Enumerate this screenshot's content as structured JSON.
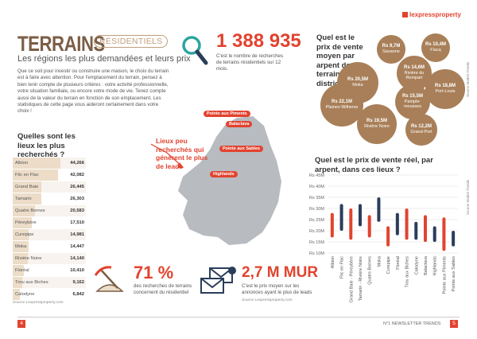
{
  "header": {
    "logo": "lexpressproperty",
    "title": "TERRAINS",
    "tag": "RÉSIDENTIELS",
    "subtitle": "Les régions les plus demandées et leurs prix"
  },
  "intro": "Que ce soit pour investir ou construire une maison, le choix du terrain est à faire avec attention. Pour l'emplacement du terrain, pensez à bien tenir compte de plusieurs critères : votre activité professionnelle, votre situation familiale, ou encore votre mode de vie. Tenez compte aussi de la valeur du terrain en fonction de son emplacement. Les statistiques de cette page vous aideront certainement dans votre choix !",
  "stat_searches": {
    "value": "1 388 935",
    "caption": "C'est le nombre de recherches de terrains résidentiels sur 12 mois."
  },
  "district_prices": {
    "title": "Quel est le prix de vente moyen par arpent de terrains par district ?",
    "source": "Source Market Trends",
    "color": "#a87f58",
    "bubbles": [
      {
        "value": 9.7,
        "label": "Rs 9,7M",
        "district": "Savanne"
      },
      {
        "value": 10.4,
        "label": "Rs 10,4M",
        "district": "Flacq"
      },
      {
        "value": 14.6,
        "label": "Rs 14,6M",
        "district": "Rivière du Rempart"
      },
      {
        "value": 20.5,
        "label": "Rs 20,5M",
        "district": "Moka"
      },
      {
        "value": 22.1,
        "label": "Rs 22,1M",
        "district": "Plaines Wilhems"
      },
      {
        "value": 15.5,
        "label": "Rs 15,5M",
        "district": "Pample-mousses"
      },
      {
        "value": 18.8,
        "label": "Rs 18,8M",
        "district": "Port-Louis"
      },
      {
        "value": 19.5,
        "label": "Rs 19,5M",
        "district": "Rivière Noire"
      },
      {
        "value": 12.2,
        "label": "Rs 12,2M",
        "district": "Grand-Port"
      }
    ]
  },
  "searched_places": {
    "title": "Quelles sont les lieux les plus recherchés ?",
    "source": "Source Lexpressproperty.com",
    "rows": [
      {
        "name": "Albion",
        "value": 44266,
        "label": "44,266"
      },
      {
        "name": "Flic en Flac",
        "value": 42082,
        "label": "42,082"
      },
      {
        "name": "Grand Baie",
        "value": 26445,
        "label": "26,445"
      },
      {
        "name": "Tamarin",
        "value": 26303,
        "label": "26,303"
      },
      {
        "name": "Quatre Bornes",
        "value": 20583,
        "label": "20,583"
      },
      {
        "name": "Péreybère",
        "value": 17510,
        "label": "17,510"
      },
      {
        "name": "Curepipe",
        "value": 14981,
        "label": "14,981"
      },
      {
        "name": "Moka",
        "value": 14447,
        "label": "14,447"
      },
      {
        "name": "Rivière Noire",
        "value": 14140,
        "label": "14,140"
      },
      {
        "name": "Floréal",
        "value": 10410,
        "label": "10,410"
      },
      {
        "name": "Trou aux Biches",
        "value": 9162,
        "label": "9,162"
      },
      {
        "name": "Calodyne",
        "value": 6842,
        "label": "6,842"
      }
    ]
  },
  "map": {
    "note": "Lieux peu recherchés qui génèrent le plus de leads",
    "places": [
      "Pointe aux Piments",
      "Balaclava",
      "Pointe aux Sables",
      "Highlands"
    ]
  },
  "price_chart": {
    "type": "range-bar",
    "title": "Quel est le prix de vente réel, par arpent, dans ces lieux ?",
    "source": "Source Market Trends",
    "categories": [
      "Albion",
      "Flic en Flac",
      "Grand Baie - Péreybère",
      "Tamarin - Rivière Noire",
      "Quatre Bornes",
      "Moka",
      "Curepipe",
      "Floréal",
      "Trou aux Biches",
      "Calodyne",
      "Balaclava",
      "Highlands",
      "Pointe aux Piments",
      "Pointe aux Sables"
    ],
    "low": [
      17,
      20,
      16,
      22,
      17,
      24,
      13,
      18,
      16,
      16,
      15,
      15,
      11,
      13
    ],
    "high": [
      28,
      32,
      30,
      32,
      27,
      35,
      22,
      28,
      30,
      24,
      27,
      22,
      26,
      20
    ],
    "colors": [
      "#e2432f",
      "#2b3d5b",
      "#e2432f",
      "#2b3d5b",
      "#e2432f",
      "#2b3d5b",
      "#e2432f",
      "#2b3d5b",
      "#e2432f",
      "#2b3d5b",
      "#e2432f",
      "#2b3d5b",
      "#e2432f",
      "#2b3d5b"
    ],
    "ylim": [
      10,
      45
    ],
    "yticks": [
      {
        "value": 10,
        "label": "Rs 10M"
      },
      {
        "value": 15,
        "label": "Rs 15M"
      },
      {
        "value": 20,
        "label": "Rs 20M"
      },
      {
        "value": 25,
        "label": "Rs 25M"
      },
      {
        "value": 30,
        "label": "Rs 30M"
      },
      {
        "value": 35,
        "label": "Rs 35M"
      },
      {
        "value": 40,
        "label": "Rs 40M"
      },
      {
        "value": 45,
        "label": "Rs 45M"
      }
    ],
    "grid": true
  },
  "stat_residential": {
    "value": "71 %",
    "caption": "des recherches de terrains concernent du résidentiel"
  },
  "stat_price": {
    "value": "2,7 M MUR",
    "caption": "C'est le prix moyen sur les annonces ayant le plus de leads",
    "source": "Source Lexpressproperty.com"
  },
  "footer": {
    "page_left": "4",
    "newsletter": "N°1 NEWSLETTER TRENDS",
    "page_right": "5"
  }
}
